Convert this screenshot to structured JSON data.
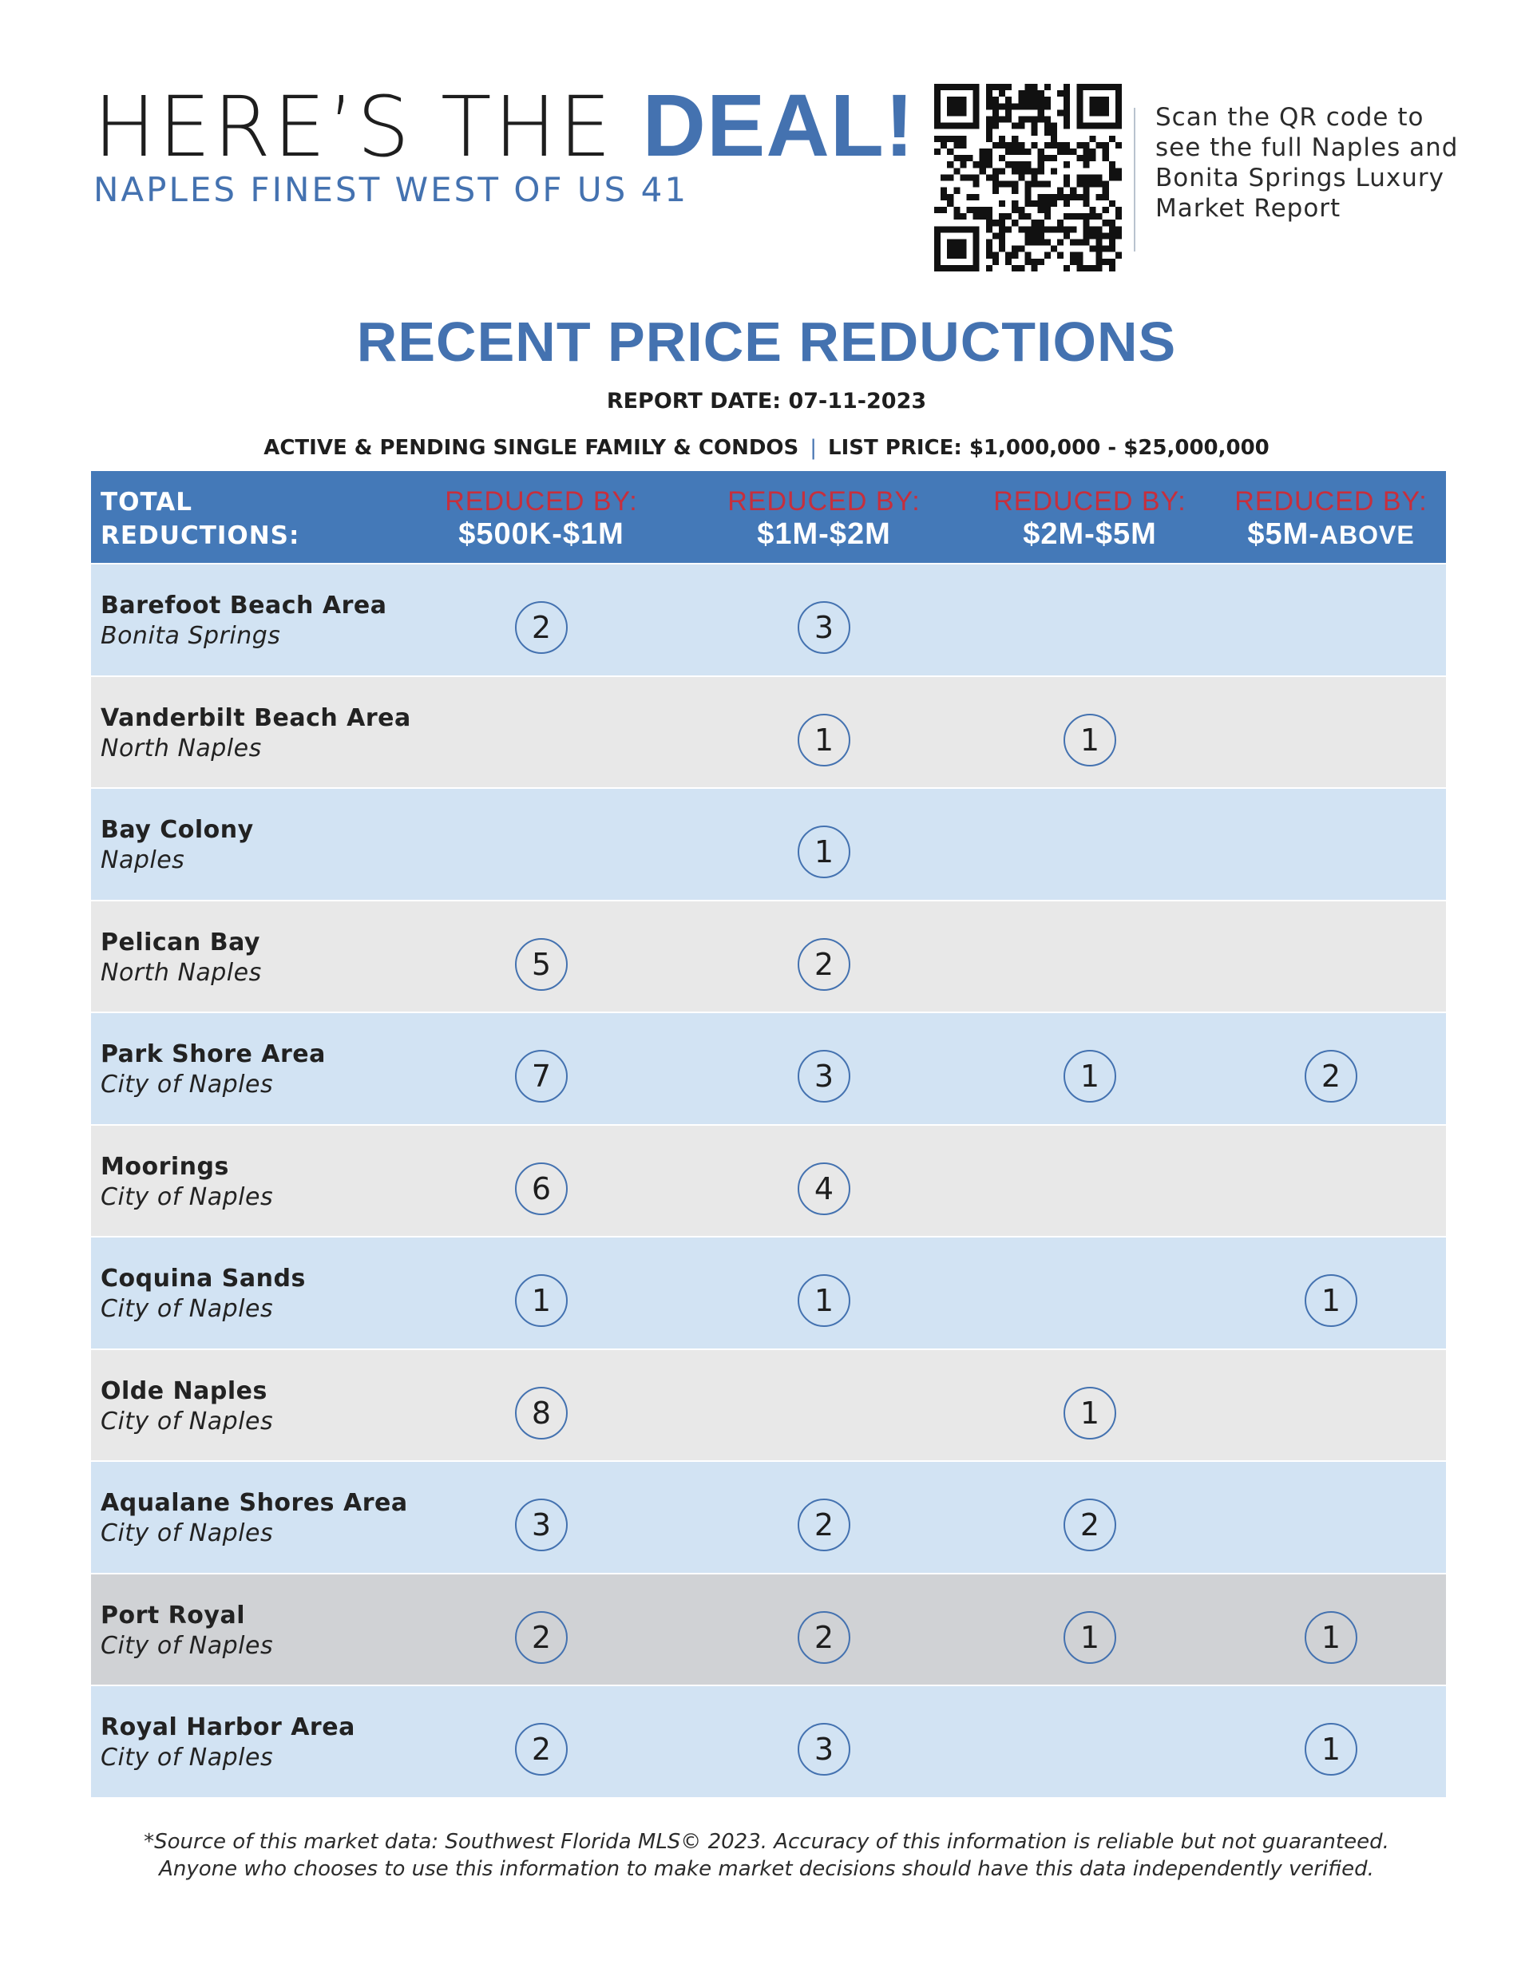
{
  "header": {
    "headline_light": "HERE’S THE ",
    "headline_bold": "DEAL!",
    "subheadline": "NAPLES FINEST WEST OF US 41",
    "qr_caption": "Scan the QR code to see the full Naples and Bonita Springs Luxury Market Report"
  },
  "report": {
    "title": "RECENT PRICE REDUCTIONS",
    "date_line": "REPORT DATE: 07-11-2023",
    "criteria_left": "ACTIVE & PENDING SINGLE FAMILY & CONDOS",
    "criteria_separator": "|",
    "criteria_right": "LIST PRICE: $1,000,000 - $25,000,000"
  },
  "table": {
    "total_label_line1": "TOTAL",
    "total_label_line2": "REDUCTIONS:",
    "columns": [
      {
        "top": "REDUCED BY:",
        "range": "$500K-$1M",
        "suffix": ""
      },
      {
        "top": "REDUCED BY:",
        "range": "$1M-$2M",
        "suffix": ""
      },
      {
        "top": "REDUCED BY:",
        "range": "$2M-$5M",
        "suffix": ""
      },
      {
        "top": "REDUCED BY:",
        "range": "$5M-",
        "suffix": "ABOVE"
      }
    ],
    "rows": [
      {
        "area": "Barefoot Beach Area",
        "city": "Bonita Springs",
        "values": [
          "2",
          "3",
          "",
          ""
        ]
      },
      {
        "area": "Vanderbilt Beach Area",
        "city": "North Naples",
        "values": [
          "",
          "1",
          "1",
          ""
        ]
      },
      {
        "area": "Bay Colony",
        "city": "Naples",
        "values": [
          "",
          "1",
          "",
          ""
        ]
      },
      {
        "area": "Pelican Bay",
        "city": "North Naples",
        "values": [
          "5",
          "2",
          "",
          ""
        ]
      },
      {
        "area": "Park Shore Area",
        "city": "City of Naples",
        "values": [
          "7",
          "3",
          "1",
          "2"
        ]
      },
      {
        "area": "Moorings",
        "city": "City of Naples",
        "values": [
          "6",
          "4",
          "",
          ""
        ]
      },
      {
        "area": "Coquina Sands",
        "city": "City of Naples",
        "values": [
          "1",
          "1",
          "",
          "1"
        ]
      },
      {
        "area": "Olde Naples",
        "city": "City of Naples",
        "values": [
          "8",
          "",
          "1",
          ""
        ]
      },
      {
        "area": "Aqualane Shores Area",
        "city": "City of Naples",
        "values": [
          "3",
          "2",
          "2",
          ""
        ]
      },
      {
        "area": "Port Royal",
        "city": "City of Naples",
        "values": [
          "2",
          "2",
          "1",
          "1"
        ]
      },
      {
        "area": "Royal Harbor Area",
        "city": "City of Naples",
        "values": [
          "2",
          "3",
          "",
          "1"
        ]
      }
    ]
  },
  "footnote_line1": "*Source of this market data: Southwest Florida MLS© 2023.  Accuracy of this information is reliable but not guaranteed.",
  "footnote_line2": "Anyone who chooses to use this information to make market decisions should have this data independently verified.",
  "colors": {
    "brand_blue": "#4472b0",
    "header_blue": "#4479b8",
    "accent_red": "#c62f3d",
    "row_blue": "#d2e3f3",
    "row_grey": "#e8e8e8",
    "row_highlight": "#d0d2d5"
  },
  "icons": {
    "qr": "qr-code-icon"
  }
}
